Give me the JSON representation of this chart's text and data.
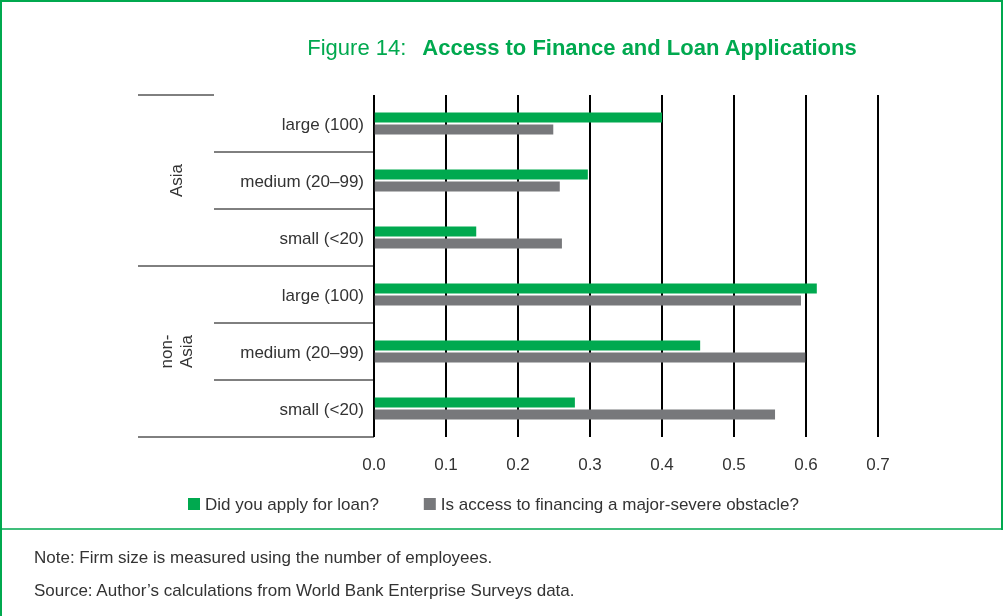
{
  "chart_data": {
    "type": "bar",
    "orientation": "horizontal",
    "title": "Figure 14:   Access to Finance and Loan Applications",
    "categories": [
      "large (100)",
      "medium (20–99)",
      "small (<20)",
      "large (100)",
      "medium (20–99)",
      "small (<20)"
    ],
    "series": [
      {
        "name": "Did you apply for loan?",
        "color": "#00a94f",
        "values": [
          0.4,
          0.297,
          0.142,
          0.615,
          0.453,
          0.279
        ]
      },
      {
        "name": "Is access to financing a major-severe obstacle?",
        "color": "#77787b",
        "values": [
          0.249,
          0.258,
          0.261,
          0.593,
          0.599,
          0.557
        ]
      }
    ],
    "xlim": [
      0,
      0.7
    ],
    "xticks": [
      {
        "value": 0,
        "label": "0.0"
      },
      0.1,
      0.2,
      0.3,
      0.4,
      0.5,
      0.6,
      0.7
    ],
    "grid": "x",
    "legend": "bottom",
    "annotations": [
      "Asia",
      "non-Asia",
      "Note: Firm size is measured using the number of employees.",
      "Source: Author’s calculations from World Bank Enterprise Surveys data."
    ]
  }
}
